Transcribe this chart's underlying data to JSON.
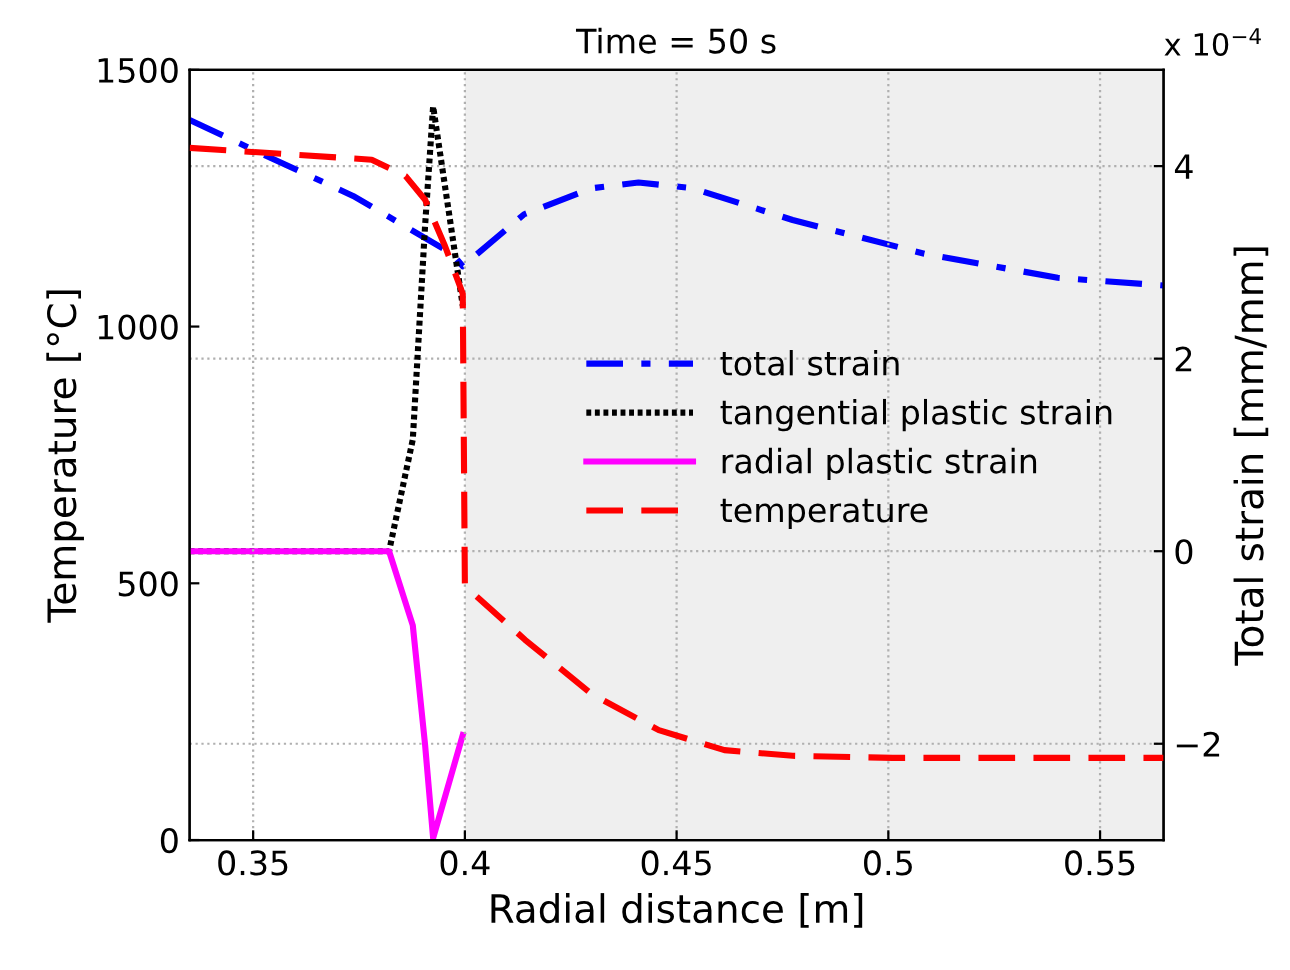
{
  "chart_data": {
    "type": "line",
    "title": "Time = 50 s",
    "xlabel": "Radial distance [m]",
    "ylabel": "Temperature [°C]",
    "y2label": "Total strain [mm/mm]",
    "annotations": [
      "x 10$^{−4}$"
    ],
    "xlim": [
      0.335,
      0.565
    ],
    "xticks": [
      0.35,
      0.4,
      0.45,
      0.5,
      0.55
    ],
    "ylim": [
      0,
      1500
    ],
    "yticks": [
      0,
      500,
      1000,
      1500
    ],
    "y2lim": [
      -3,
      5
    ],
    "y2ticks": [
      -2,
      0,
      2,
      4
    ],
    "grid": true,
    "legend": "right",
    "bands": [
      {
        "axis": "x",
        "from": 0.4,
        "to": 0.565,
        "color": "#efefef"
      }
    ],
    "series": [
      {
        "name": "total strain",
        "color": "#0000ff",
        "axis": "y2",
        "line_style": "dashdot",
        "x": [
          0.335,
          0.35,
          0.3736,
          0.397,
          0.3995,
          0.414,
          0.43,
          0.441,
          0.4538,
          0.4774,
          0.5085,
          0.54,
          0.565
        ],
        "values": [
          4.48,
          4.17,
          3.69,
          3.09,
          2.96,
          3.5,
          3.77,
          3.83,
          3.77,
          3.44,
          3.09,
          2.84,
          2.76
        ]
      },
      {
        "name": "tangential plastic strain",
        "color": "#000000",
        "axis": "y2",
        "line_style": "dotted",
        "x": [
          0.335,
          0.3821,
          0.3877,
          0.3906,
          0.3925,
          0.3995
        ],
        "values": [
          0,
          0,
          1.16,
          3.38,
          4.62,
          2.55
        ]
      },
      {
        "name": "radial plastic strain",
        "color": "#ff00ff",
        "axis": "y2",
        "line_style": "solid",
        "x": [
          0.335,
          0.3821,
          0.3877,
          0.3906,
          0.3925,
          0.3995
        ],
        "values": [
          0,
          0,
          -0.77,
          -2.01,
          -2.98,
          -1.91
        ]
      },
      {
        "name": "temperature",
        "color": "#ff0000",
        "axis": "y",
        "line_style": "dashed",
        "x": [
          0.335,
          0.378,
          0.386,
          0.3906,
          0.3953,
          0.3995,
          0.4,
          0.4142,
          0.43,
          0.4458,
          0.4613,
          0.4774,
          0.501,
          0.565
        ],
        "values": [
          1348,
          1325,
          1293,
          1247,
          1157,
          1064,
          495,
          390,
          284,
          214,
          175,
          164,
          160,
          160
        ]
      }
    ]
  }
}
